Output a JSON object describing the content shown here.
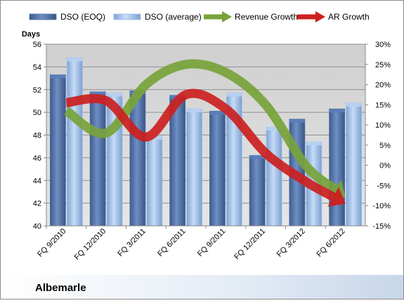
{
  "chart_data": {
    "type": "bar",
    "company_label": "Albemarle",
    "y_left_title": "Days",
    "categories": [
      "FQ 9/2010",
      "FQ 12/2010",
      "FQ 3/2011",
      "FQ 6/2011",
      "FQ 9/2011",
      "FQ 12/2011",
      "FQ 3/2012",
      "FQ 6/2012"
    ],
    "series": [
      {
        "name": "DSO (EOQ)",
        "type": "bar",
        "axis": "left",
        "color": "#4f6fa6",
        "values": [
          53.3,
          51.8,
          51.9,
          51.5,
          50.1,
          46.2,
          49.4,
          50.3
        ]
      },
      {
        "name": "DSO (average)",
        "type": "bar",
        "axis": "left",
        "color": "#9ec0ea",
        "values": [
          54.8,
          51.7,
          47.9,
          50.3,
          51.7,
          48.7,
          47.4,
          50.8
        ]
      },
      {
        "name": "Revenue Growth",
        "type": "arrow",
        "axis": "right",
        "color": "#77a33a",
        "values": [
          13.5,
          8.0,
          20.0,
          25.0,
          23.0,
          15.0,
          0.0,
          -8.0
        ]
      },
      {
        "name": "AR Growth",
        "type": "arrow",
        "axis": "right",
        "color": "#cc1f1f",
        "values": [
          15.5,
          16.0,
          7.0,
          17.5,
          14.0,
          3.0,
          -4.0,
          -9.5
        ]
      }
    ],
    "y_left": {
      "min": 40,
      "max": 56,
      "step": 2,
      "tick_labels": [
        "40",
        "42",
        "44",
        "46",
        "48",
        "50",
        "52",
        "54",
        "56"
      ]
    },
    "y_right": {
      "min": -15,
      "max": 30,
      "step": 5,
      "tick_labels": [
        "-15%",
        "-10%",
        "-5%",
        "0%",
        "5%",
        "10%",
        "15%",
        "20%",
        "25%",
        "30%"
      ]
    },
    "legend_position": "top",
    "grid": true
  }
}
